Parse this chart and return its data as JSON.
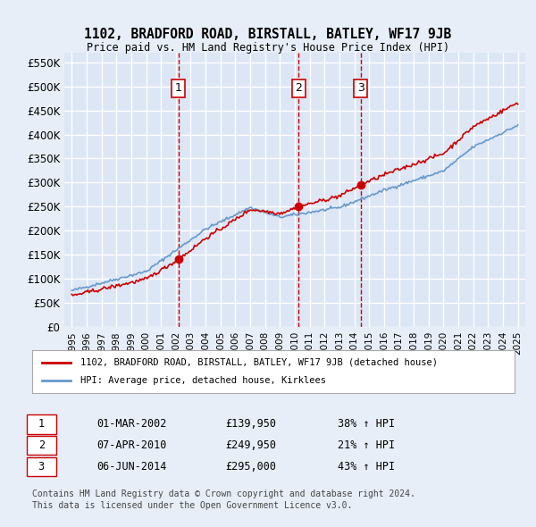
{
  "title": "1102, BRADFORD ROAD, BIRSTALL, BATLEY, WF17 9JB",
  "subtitle": "Price paid vs. HM Land Registry's House Price Index (HPI)",
  "background_color": "#e8eef8",
  "plot_bg_color": "#dce6f5",
  "grid_color": "#ffffff",
  "ylabel_ticks": [
    "£0",
    "£50K",
    "£100K",
    "£150K",
    "£200K",
    "£250K",
    "£300K",
    "£350K",
    "£400K",
    "£450K",
    "£500K",
    "£550K"
  ],
  "ytick_values": [
    0,
    50000,
    100000,
    150000,
    200000,
    250000,
    300000,
    350000,
    400000,
    450000,
    500000,
    550000
  ],
  "xlim": [
    1994.5,
    2025.5
  ],
  "ylim": [
    0,
    570000
  ],
  "sale_dates_num": [
    2002.17,
    2010.27,
    2014.43
  ],
  "sale_prices": [
    139950,
    249950,
    295000
  ],
  "sale_labels": [
    "1",
    "2",
    "3"
  ],
  "vline_color": "#cc0000",
  "vline_style": "--",
  "sale_marker_color": "#cc0000",
  "hpi_line_color": "#6699cc",
  "property_line_color": "#cc0000",
  "legend_property_label": "1102, BRADFORD ROAD, BIRSTALL, BATLEY, WF17 9JB (detached house)",
  "legend_hpi_label": "HPI: Average price, detached house, Kirklees",
  "table_rows": [
    [
      "1",
      "01-MAR-2002",
      "£139,950",
      "38% ↑ HPI"
    ],
    [
      "2",
      "07-APR-2010",
      "£249,950",
      "21% ↑ HPI"
    ],
    [
      "3",
      "06-JUN-2014",
      "£295,000",
      "43% ↑ HPI"
    ]
  ],
  "footer_line1": "Contains HM Land Registry data © Crown copyright and database right 2024.",
  "footer_line2": "This data is licensed under the Open Government Licence v3.0.",
  "xtick_years": [
    1995,
    1996,
    1997,
    1998,
    1999,
    2000,
    2001,
    2002,
    2003,
    2004,
    2005,
    2006,
    2007,
    2008,
    2009,
    2010,
    2011,
    2012,
    2013,
    2014,
    2015,
    2016,
    2017,
    2018,
    2019,
    2020,
    2021,
    2022,
    2023,
    2024,
    2025
  ]
}
